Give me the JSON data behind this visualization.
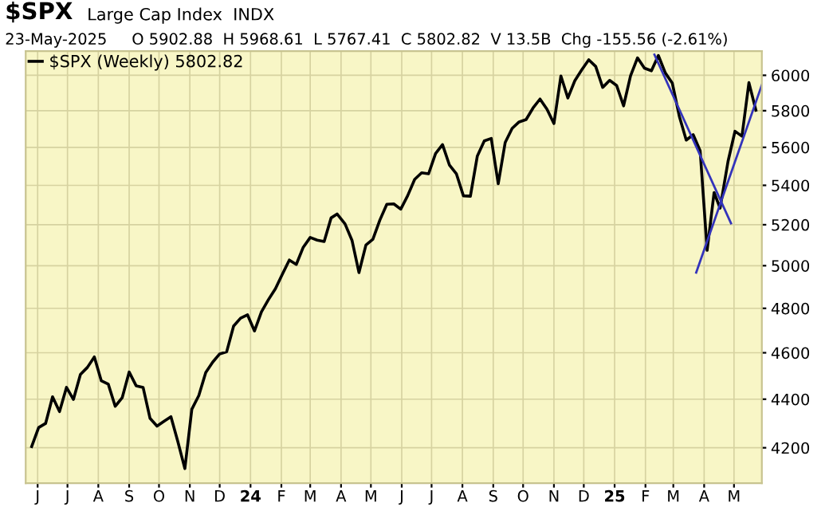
{
  "chart_data": {
    "type": "line",
    "title": "$SPX",
    "subtitle": "Large Cap Index  INDX",
    "annotations": [
      "23-May-2025     O 5902.88  H 5968.61  L 5767.41  C 5802.82  V 13.5B  Chg -155.56 (-2.61%)"
    ],
    "x": [
      "2023-05-26",
      "2023-06-02",
      "2023-06-09",
      "2023-06-16",
      "2023-06-23",
      "2023-06-30",
      "2023-07-07",
      "2023-07-14",
      "2023-07-21",
      "2023-07-28",
      "2023-08-04",
      "2023-08-11",
      "2023-08-18",
      "2023-08-25",
      "2023-09-01",
      "2023-09-08",
      "2023-09-15",
      "2023-09-22",
      "2023-09-29",
      "2023-10-06",
      "2023-10-13",
      "2023-10-20",
      "2023-10-27",
      "2023-11-03",
      "2023-11-10",
      "2023-11-17",
      "2023-11-24",
      "2023-12-01",
      "2023-12-08",
      "2023-12-15",
      "2023-12-22",
      "2023-12-29",
      "2024-01-05",
      "2024-01-12",
      "2024-01-19",
      "2024-01-26",
      "2024-02-02",
      "2024-02-09",
      "2024-02-16",
      "2024-02-23",
      "2024-03-01",
      "2024-03-08",
      "2024-03-15",
      "2024-03-22",
      "2024-03-28",
      "2024-04-05",
      "2024-04-12",
      "2024-04-19",
      "2024-04-26",
      "2024-05-03",
      "2024-05-10",
      "2024-05-17",
      "2024-05-24",
      "2024-05-31",
      "2024-06-07",
      "2024-06-14",
      "2024-06-21",
      "2024-06-28",
      "2024-07-05",
      "2024-07-12",
      "2024-07-19",
      "2024-07-26",
      "2024-08-02",
      "2024-08-09",
      "2024-08-16",
      "2024-08-23",
      "2024-08-30",
      "2024-09-06",
      "2024-09-13",
      "2024-09-20",
      "2024-09-27",
      "2024-10-04",
      "2024-10-11",
      "2024-10-18",
      "2024-10-25",
      "2024-11-01",
      "2024-11-08",
      "2024-11-15",
      "2024-11-22",
      "2024-11-29",
      "2024-12-06",
      "2024-12-13",
      "2024-12-20",
      "2024-12-27",
      "2025-01-03",
      "2025-01-10",
      "2025-01-17",
      "2025-01-24",
      "2025-01-31",
      "2025-02-07",
      "2025-02-14",
      "2025-02-21",
      "2025-02-28",
      "2025-03-07",
      "2025-03-14",
      "2025-03-21",
      "2025-03-28",
      "2025-04-04",
      "2025-04-11",
      "2025-04-17",
      "2025-04-25",
      "2025-05-02",
      "2025-05-09",
      "2025-05-16",
      "2025-05-23"
    ],
    "series": [
      {
        "name": "$SPX (Weekly) 5802.82",
        "color": "#000000",
        "values": [
          4205,
          4282,
          4299,
          4410,
          4348,
          4450,
          4399,
          4505,
          4536,
          4582,
          4478,
          4464,
          4370,
          4406,
          4516,
          4457,
          4450,
          4320,
          4288,
          4308,
          4327,
          4224,
          4117,
          4358,
          4415,
          4514,
          4559,
          4595,
          4604,
          4719,
          4755,
          4770,
          4697,
          4784,
          4840,
          4891,
          4959,
          5027,
          5006,
          5089,
          5137,
          5124,
          5117,
          5234,
          5254,
          5204,
          5123,
          4967,
          5100,
          5128,
          5223,
          5303,
          5305,
          5278,
          5347,
          5431,
          5465,
          5460,
          5567,
          5615,
          5505,
          5459,
          5346,
          5344,
          5554,
          5635,
          5648,
          5408,
          5626,
          5703,
          5738,
          5751,
          5815,
          5865,
          5808,
          5729,
          5996,
          5871,
          5969,
          6032,
          6090,
          6051,
          5931,
          5971,
          5942,
          5827,
          5997,
          6101,
          6041,
          6026,
          6115,
          6013,
          5955,
          5770,
          5639,
          5668,
          5581,
          5074,
          5363,
          5283,
          5525,
          5687,
          5660,
          5958,
          5803
        ]
      },
      {
        "type": "line",
        "color": "#3333bb",
        "x": [
          "2025-02-10",
          "2025-04-28"
        ],
        "values": [
          6120,
          5207
        ]
      },
      {
        "type": "line",
        "color": "#3333bb",
        "x": [
          "2025-03-24",
          "2025-05-29"
        ],
        "values": [
          4967,
          5945
        ]
      }
    ],
    "log": true,
    "ylim": [
      4060,
      6140
    ],
    "yticks": [
      4200,
      4400,
      4600,
      4800,
      5000,
      5200,
      5400,
      5600,
      5800,
      6000
    ],
    "xlim": [
      "2023-05-20",
      "2025-05-29"
    ],
    "xticks": [
      {
        "value": "2023-06-01",
        "label": "J"
      },
      {
        "value": "2023-07-01",
        "label": "J"
      },
      {
        "value": "2023-08-01",
        "label": "A"
      },
      {
        "value": "2023-09-01",
        "label": "S"
      },
      {
        "value": "2023-10-01",
        "label": "O"
      },
      {
        "value": "2023-11-01",
        "label": "N"
      },
      {
        "value": "2023-12-01",
        "label": "D"
      },
      {
        "value": "2024-01-01",
        "label": "24"
      },
      {
        "value": "2024-02-01",
        "label": "F"
      },
      {
        "value": "2024-03-01",
        "label": "M"
      },
      {
        "value": "2024-04-01",
        "label": "A"
      },
      {
        "value": "2024-05-01",
        "label": "M"
      },
      {
        "value": "2024-06-01",
        "label": "J"
      },
      {
        "value": "2024-07-01",
        "label": "J"
      },
      {
        "value": "2024-08-01",
        "label": "A"
      },
      {
        "value": "2024-09-01",
        "label": "S"
      },
      {
        "value": "2024-10-01",
        "label": "O"
      },
      {
        "value": "2024-11-01",
        "label": "N"
      },
      {
        "value": "2024-12-01",
        "label": "D"
      },
      {
        "value": "2025-01-01",
        "label": "25"
      },
      {
        "value": "2025-02-01",
        "label": "F"
      },
      {
        "value": "2025-03-01",
        "label": "M"
      },
      {
        "value": "2025-04-01",
        "label": "A"
      },
      {
        "value": "2025-05-01",
        "label": "M"
      }
    ],
    "grid": true,
    "legend": "top left",
    "line_style": "solid",
    "marker": "none"
  }
}
